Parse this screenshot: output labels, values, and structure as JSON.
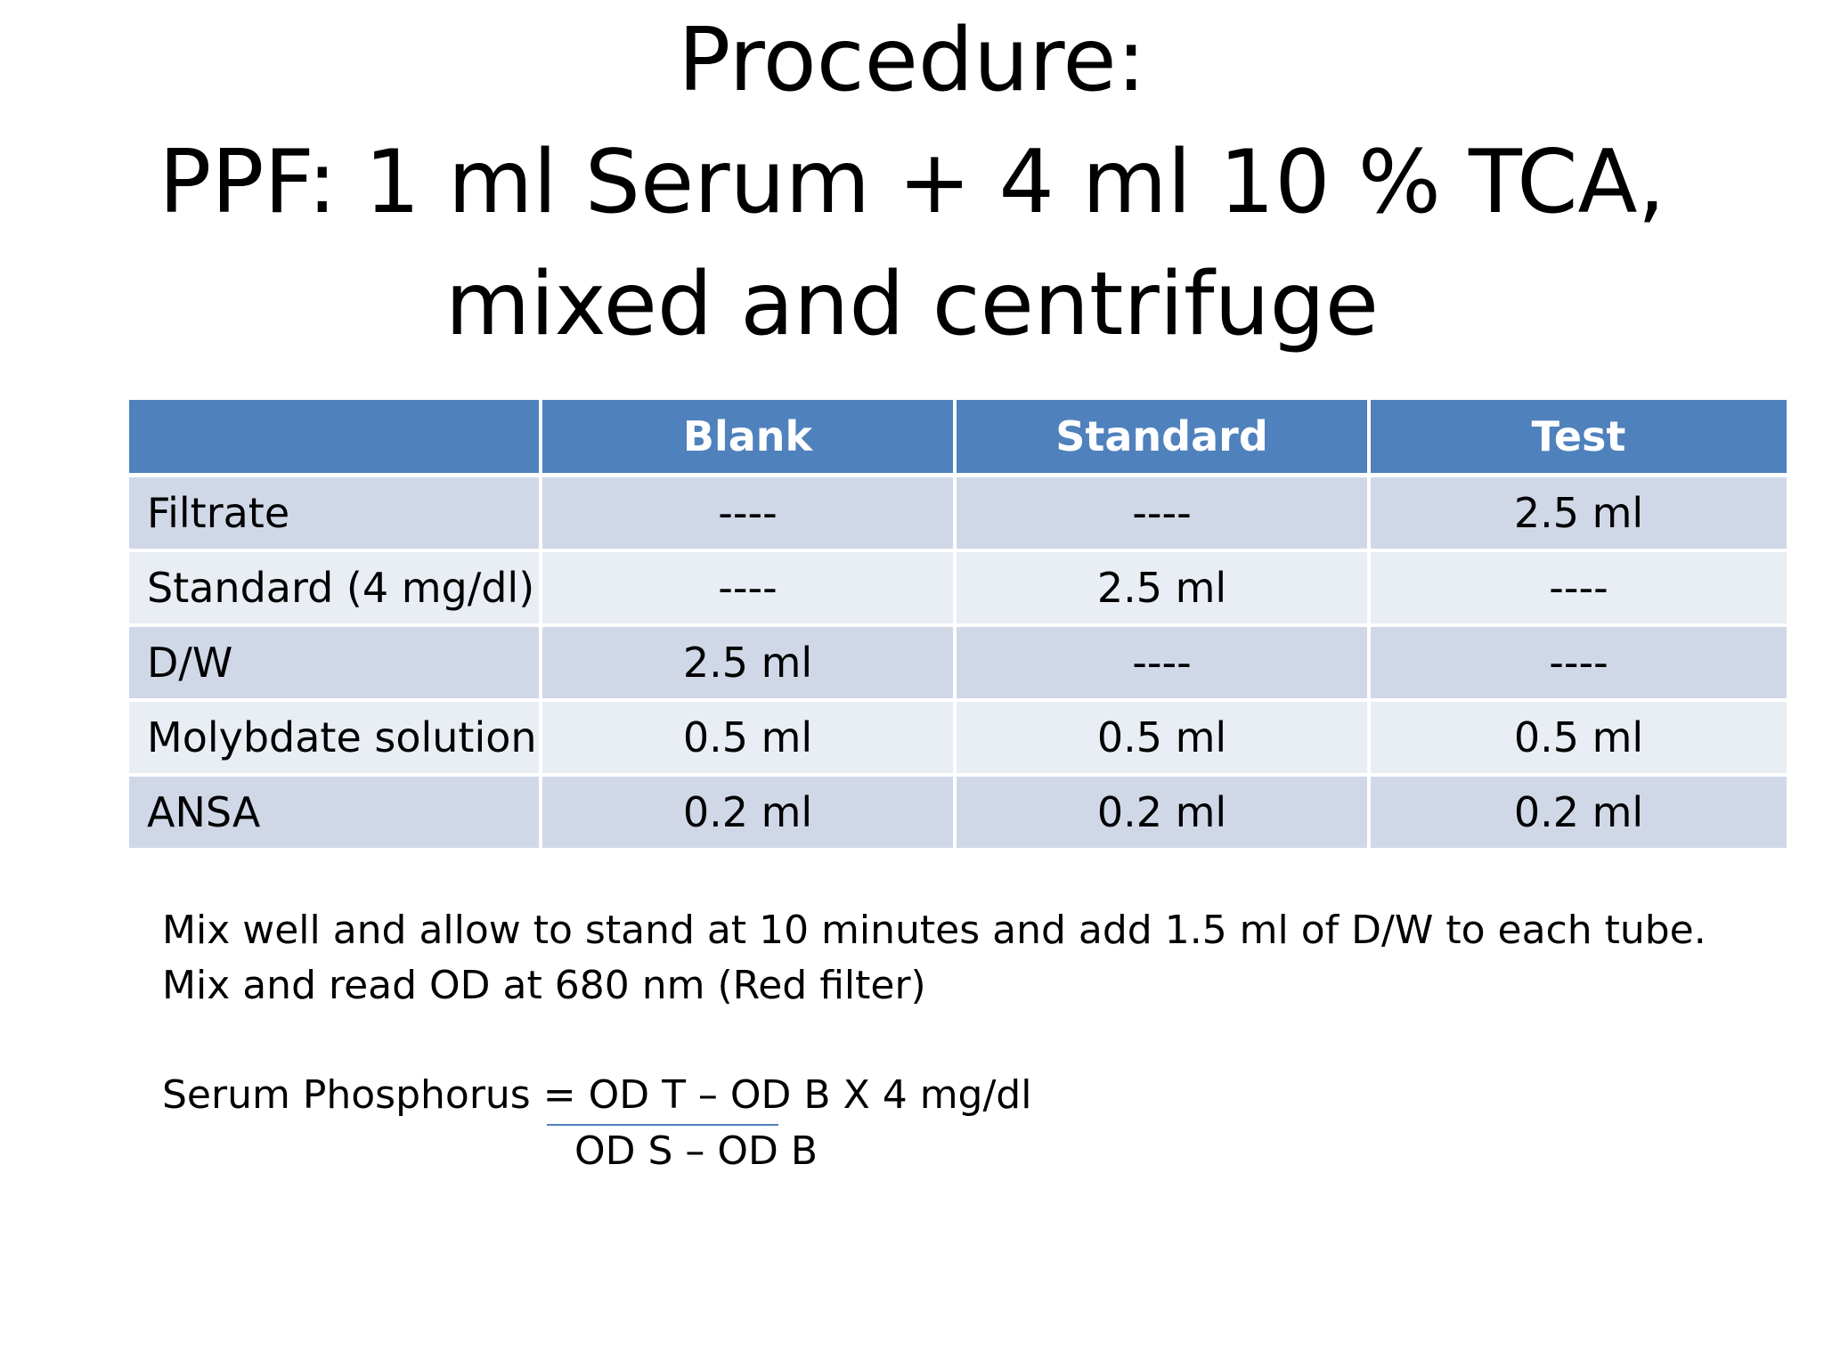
{
  "slide": {
    "title_lines": [
      "Procedure:",
      "PPF: 1 ml Serum + 4 ml 10 % TCA,",
      "mixed and centrifuge"
    ]
  },
  "table": {
    "headers": [
      "",
      "Blank",
      "Standard",
      "Test"
    ],
    "rows": [
      [
        "Filtrate",
        "----",
        "----",
        "2.5 ml"
      ],
      [
        "Standard (4 mg/dl)",
        "----",
        "2.5 ml",
        "----"
      ],
      [
        "D/W",
        "2.5 ml",
        "----",
        "----"
      ],
      [
        "Molybdate solution",
        "0.5 ml",
        "0.5 ml",
        "0.5  ml"
      ],
      [
        "ANSA",
        "0.2 ml",
        "0.2 ml",
        "0.2 ml"
      ]
    ]
  },
  "instructions": {
    "text": "Mix well and allow to stand at 10 minutes and add 1.5 ml of D/W  to each tube. Mix and  read OD at 680 nm (Red filter)"
  },
  "formula": {
    "numerator_line": "Serum Phosphorus = OD T – OD B X 4 mg/dl",
    "denominator": "OD S – OD B"
  },
  "colors": {
    "header_fill": "#4f81bd",
    "row_odd_fill": "#d0d8e8",
    "row_even_fill": "#e9edf4",
    "fraction_bar": "#4f81bd"
  }
}
